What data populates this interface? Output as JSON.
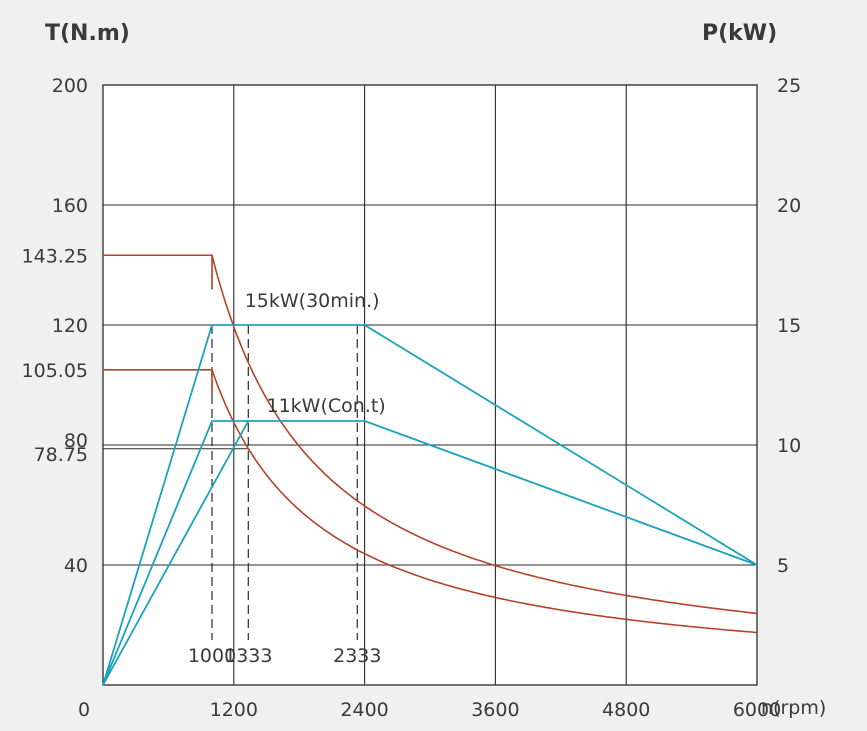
{
  "chart_data": {
    "type": "line",
    "left_axis_title": "T(N.m)",
    "right_axis_title": "P(kW)",
    "x_axis_title": "n(rpm)",
    "xlim": [
      0,
      6000
    ],
    "ylim_left": [
      0,
      200
    ],
    "ylim_right": [
      0,
      25
    ],
    "x_ticks": [
      "0",
      "1200",
      "2400",
      "3600",
      "4800",
      "6000"
    ],
    "x_tick_values": [
      0,
      1200,
      2400,
      3600,
      4800,
      6000
    ],
    "left_ticks": [
      "200",
      "160",
      "143.25",
      "120",
      "105.05",
      "80",
      "78.75",
      "40"
    ],
    "left_tick_values": [
      200,
      160,
      143.25,
      120,
      105.05,
      80,
      78.75,
      40
    ],
    "right_ticks": [
      "25",
      "20",
      "15",
      "10",
      "5"
    ],
    "right_tick_values": [
      25,
      20,
      15,
      10,
      5
    ],
    "grid": true,
    "speed_markers": [
      {
        "label": "1000",
        "x": 1000
      },
      {
        "label": "1333",
        "x": 1333
      },
      {
        "label": "2333",
        "x": 2333
      }
    ],
    "annotations": [
      {
        "text": "15kW(30min.)",
        "x": 1300,
        "y": 126
      },
      {
        "text": "11kW(Con.t)",
        "x": 1500,
        "y": 91
      }
    ],
    "torque_curves": [
      {
        "axis": "left",
        "base_speed": 1000,
        "rated_torque": 143.25,
        "power_kw": 15,
        "max_speed": 6000,
        "color": "#b5432c"
      },
      {
        "axis": "left",
        "base_speed": 1000,
        "rated_torque": 105.05,
        "power_kw": 11,
        "max_speed": 6000,
        "color": "#b5432c"
      }
    ],
    "power_curves": [
      {
        "axis": "right",
        "x": [
          0,
          1000,
          2400,
          6000
        ],
        "y": [
          0,
          15,
          15,
          5
        ],
        "color": "#1ba3bd"
      },
      {
        "axis": "right",
        "x": [
          0,
          1000,
          2400,
          6000
        ],
        "y": [
          0,
          11,
          11,
          5
        ],
        "color": "#1ba3bd"
      },
      {
        "axis": "right",
        "x": [
          0,
          1333
        ],
        "y": [
          0,
          11
        ],
        "color": "#1ba3bd"
      }
    ],
    "reference_lines": [
      {
        "axis": "left",
        "y": 78.75,
        "x_end": 1333
      }
    ]
  }
}
